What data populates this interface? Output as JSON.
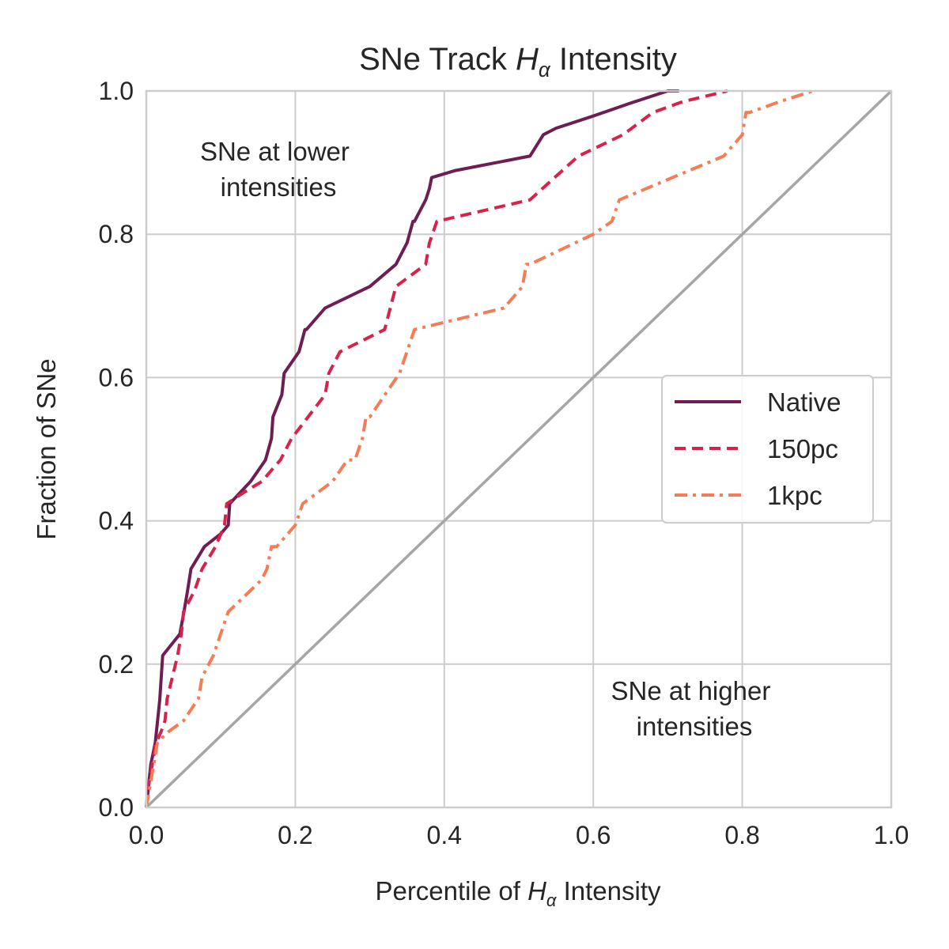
{
  "chart_data": {
    "type": "line",
    "title": {
      "prefix": "SNe Track ",
      "var_main": "H",
      "var_sub": "α",
      "suffix": " Intensity"
    },
    "xlabel": {
      "prefix": "Percentile of ",
      "var_main": "H",
      "var_sub": "α",
      "suffix": " Intensity"
    },
    "ylabel": "Fraction of SNe",
    "xlim": [
      0,
      1
    ],
    "ylim": [
      0,
      1
    ],
    "xticks": [
      "0.0",
      "0.2",
      "0.4",
      "0.6",
      "0.8",
      "1.0"
    ],
    "yticks": [
      "0.0",
      "0.2",
      "0.4",
      "0.6",
      "0.8",
      "1.0"
    ],
    "grid": true,
    "legend_position": "right",
    "annotations": [
      {
        "lines": [
          "SNe at lower",
          "intensities"
        ]
      },
      {
        "lines": [
          "SNe at higher",
          "intensities"
        ]
      }
    ],
    "reference_line": {
      "x": [
        0,
        1
      ],
      "y": [
        0,
        1
      ],
      "color": "#a6a6a6"
    },
    "series": [
      {
        "name": "Native",
        "color": "#6e1e52",
        "style": "solid",
        "x": [
          0,
          0.003,
          0.006,
          0.012,
          0.018,
          0.022,
          0.045,
          0.05,
          0.055,
          0.06,
          0.078,
          0.1,
          0.11,
          0.112,
          0.14,
          0.15,
          0.16,
          0.168,
          0.17,
          0.182,
          0.185,
          0.205,
          0.213,
          0.215,
          0.24,
          0.3,
          0.335,
          0.35,
          0.358,
          0.36,
          0.375,
          0.38,
          0.383,
          0.415,
          0.515,
          0.533,
          0.55,
          0.6,
          0.65,
          0.7,
          0.715
        ],
        "y": [
          0,
          0.03,
          0.06,
          0.09,
          0.15,
          0.212,
          0.242,
          0.27,
          0.3,
          0.333,
          0.364,
          0.382,
          0.394,
          0.424,
          0.455,
          0.47,
          0.485,
          0.515,
          0.545,
          0.576,
          0.606,
          0.636,
          0.667,
          0.667,
          0.697,
          0.727,
          0.758,
          0.788,
          0.818,
          0.818,
          0.848,
          0.864,
          0.879,
          0.889,
          0.909,
          0.939,
          0.948,
          0.965,
          0.983,
          1.0,
          1.0
        ]
      },
      {
        "name": "150pc",
        "color": "#d7234c",
        "style": "dashed",
        "x": [
          0,
          0.003,
          0.008,
          0.013,
          0.02,
          0.025,
          0.028,
          0.035,
          0.042,
          0.047,
          0.05,
          0.065,
          0.075,
          0.093,
          0.105,
          0.108,
          0.13,
          0.155,
          0.18,
          0.195,
          0.24,
          0.245,
          0.26,
          0.32,
          0.335,
          0.375,
          0.38,
          0.39,
          0.515,
          0.58,
          0.64,
          0.68,
          0.72,
          0.78
        ],
        "y": [
          0,
          0.03,
          0.06,
          0.09,
          0.106,
          0.121,
          0.152,
          0.182,
          0.212,
          0.242,
          0.273,
          0.303,
          0.333,
          0.364,
          0.394,
          0.424,
          0.439,
          0.455,
          0.485,
          0.515,
          0.576,
          0.606,
          0.636,
          0.667,
          0.727,
          0.758,
          0.788,
          0.818,
          0.848,
          0.909,
          0.939,
          0.97,
          0.985,
          1.0
        ]
      },
      {
        "name": "1kpc",
        "color": "#f47c57",
        "style": "dashdot",
        "x": [
          0,
          0.005,
          0.01,
          0.015,
          0.03,
          0.05,
          0.07,
          0.075,
          0.09,
          0.105,
          0.11,
          0.14,
          0.155,
          0.162,
          0.168,
          0.175,
          0.2,
          0.21,
          0.25,
          0.27,
          0.28,
          0.29,
          0.295,
          0.3,
          0.34,
          0.36,
          0.48,
          0.505,
          0.51,
          0.515,
          0.6,
          0.625,
          0.635,
          0.775,
          0.8,
          0.805,
          0.81,
          0.85,
          0.895
        ],
        "y": [
          0,
          0.03,
          0.06,
          0.091,
          0.106,
          0.121,
          0.152,
          0.182,
          0.212,
          0.258,
          0.273,
          0.303,
          0.318,
          0.333,
          0.364,
          0.364,
          0.394,
          0.424,
          0.455,
          0.485,
          0.485,
          0.515,
          0.545,
          0.545,
          0.606,
          0.667,
          0.697,
          0.727,
          0.758,
          0.758,
          0.8,
          0.818,
          0.848,
          0.909,
          0.939,
          0.97,
          0.97,
          0.985,
          1.0
        ]
      }
    ]
  }
}
